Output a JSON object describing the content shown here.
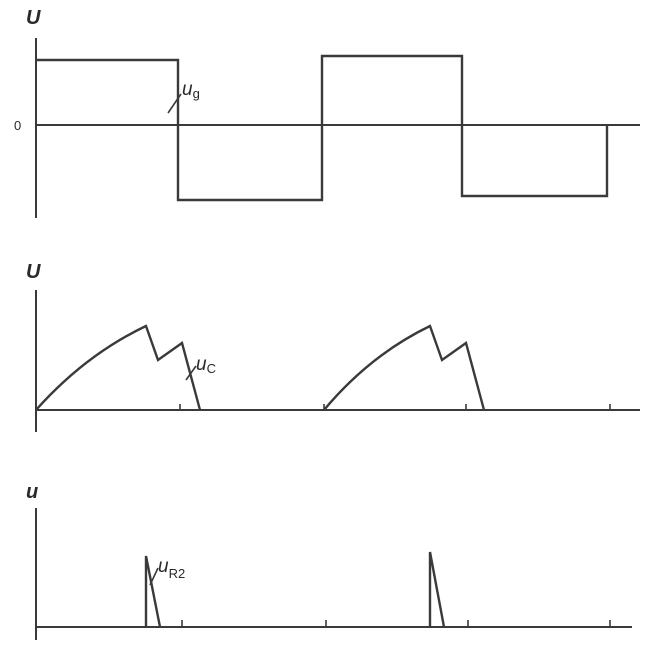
{
  "figure": {
    "panels": [
      {
        "id": "top",
        "axis_label": "U",
        "zero_label": "0",
        "signal": {
          "name": "u",
          "sub": "g"
        }
      },
      {
        "id": "middle",
        "axis_label": "U",
        "signal": {
          "name": "u",
          "sub": "C"
        }
      },
      {
        "id": "bottom",
        "axis_label": "u",
        "signal": {
          "name": "u",
          "sub": "R2"
        }
      }
    ]
  },
  "colors": {
    "ink": "#3a3a3a",
    "background": "#ffffff"
  }
}
